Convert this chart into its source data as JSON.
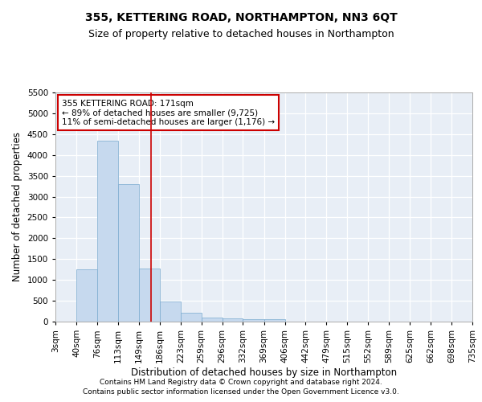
{
  "title": "355, KETTERING ROAD, NORTHAMPTON, NN3 6QT",
  "subtitle": "Size of property relative to detached houses in Northampton",
  "xlabel": "Distribution of detached houses by size in Northampton",
  "ylabel": "Number of detached properties",
  "footer_line1": "Contains HM Land Registry data © Crown copyright and database right 2024.",
  "footer_line2": "Contains public sector information licensed under the Open Government Licence v3.0.",
  "bin_labels": [
    "3sqm",
    "40sqm",
    "76sqm",
    "113sqm",
    "149sqm",
    "186sqm",
    "223sqm",
    "259sqm",
    "296sqm",
    "332sqm",
    "369sqm",
    "406sqm",
    "442sqm",
    "479sqm",
    "515sqm",
    "552sqm",
    "589sqm",
    "625sqm",
    "662sqm",
    "698sqm",
    "735sqm"
  ],
  "bin_edges": [
    3,
    40,
    76,
    113,
    149,
    186,
    223,
    259,
    296,
    332,
    369,
    406,
    442,
    479,
    515,
    552,
    589,
    625,
    662,
    698,
    735
  ],
  "bar_heights": [
    0,
    1255,
    4340,
    3300,
    1270,
    490,
    215,
    90,
    75,
    60,
    55,
    0,
    0,
    0,
    0,
    0,
    0,
    0,
    0,
    0
  ],
  "bar_color": "#c6d9ee",
  "bar_edge_color": "#7aaacf",
  "bg_color": "#e8eef6",
  "grid_color": "#ffffff",
  "red_line_x": 171,
  "ylim": [
    0,
    5500
  ],
  "yticks": [
    0,
    500,
    1000,
    1500,
    2000,
    2500,
    3000,
    3500,
    4000,
    4500,
    5000,
    5500
  ],
  "annotation_line1": "355 KETTERING ROAD: 171sqm",
  "annotation_line2": "← 89% of detached houses are smaller (9,725)",
  "annotation_line3": "11% of semi-detached houses are larger (1,176) →",
  "annotation_box_color": "#cc0000",
  "title_fontsize": 10,
  "subtitle_fontsize": 9,
  "axis_label_fontsize": 8.5,
  "tick_fontsize": 7.5,
  "annotation_fontsize": 7.5,
  "footer_fontsize": 6.5
}
